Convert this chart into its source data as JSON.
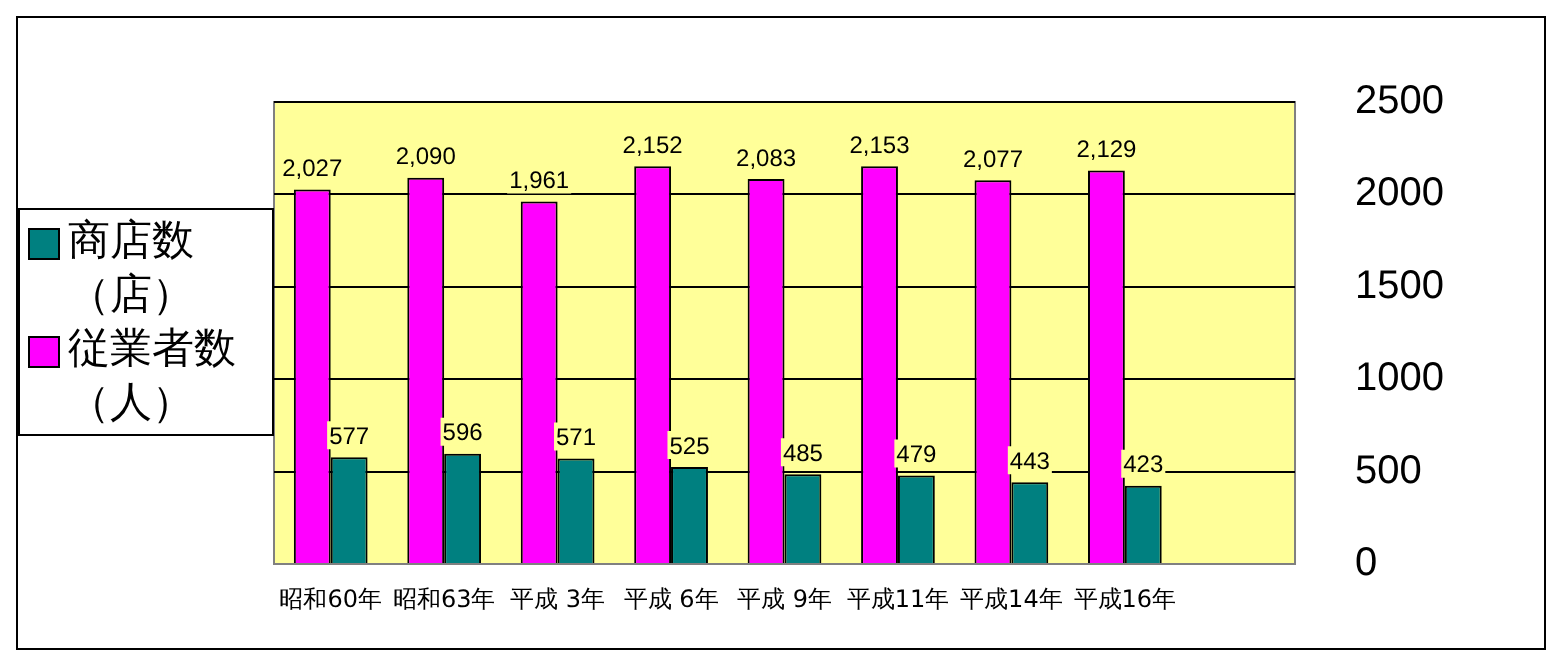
{
  "chart_data": {
    "type": "bar",
    "categories": [
      "昭和60年",
      "昭和63年",
      "平成 3年",
      "平成 6年",
      "平成 9年",
      "平成11年",
      "平成14年",
      "平成16年",
      null
    ],
    "series": [
      {
        "name": "従業者数（人）",
        "color": "#ff00ff",
        "values": [
          2027,
          2090,
          1961,
          2152,
          2083,
          2153,
          2077,
          2129,
          null
        ],
        "value_labels": [
          "2,027",
          "2,090",
          "1,961",
          "2,152",
          "2,083",
          "2,153",
          "2,077",
          "2,129",
          null
        ]
      },
      {
        "name": "商店数（店）",
        "color": "#008080",
        "values": [
          577,
          596,
          571,
          525,
          485,
          479,
          443,
          423,
          null
        ],
        "value_labels": [
          "577",
          "596",
          "571",
          "525",
          "485",
          "479",
          "443",
          "423",
          null
        ]
      }
    ],
    "ylim": [
      0,
      2500
    ],
    "yticks": [
      0,
      500,
      1000,
      1500,
      2000,
      2500
    ],
    "grid": "y",
    "legend": "left"
  }
}
